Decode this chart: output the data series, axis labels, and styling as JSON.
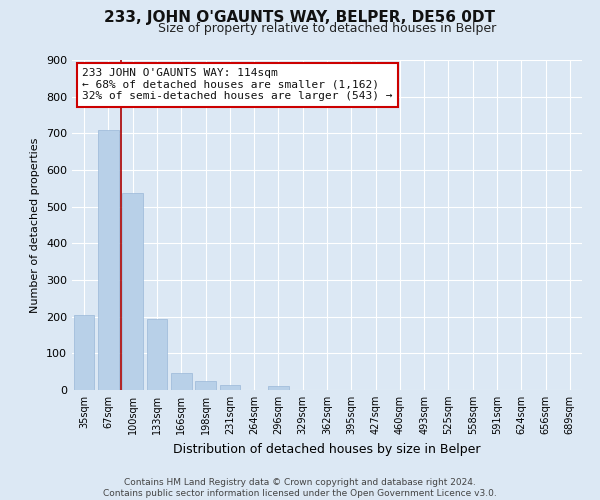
{
  "title": "233, JOHN O'GAUNTS WAY, BELPER, DE56 0DT",
  "subtitle": "Size of property relative to detached houses in Belper",
  "xlabel": "Distribution of detached houses by size in Belper",
  "ylabel": "Number of detached properties",
  "categories": [
    "35sqm",
    "67sqm",
    "100sqm",
    "133sqm",
    "166sqm",
    "198sqm",
    "231sqm",
    "264sqm",
    "296sqm",
    "329sqm",
    "362sqm",
    "395sqm",
    "427sqm",
    "460sqm",
    "493sqm",
    "525sqm",
    "558sqm",
    "591sqm",
    "624sqm",
    "656sqm",
    "689sqm"
  ],
  "values": [
    204,
    710,
    537,
    193,
    46,
    25,
    13,
    0,
    10,
    0,
    0,
    0,
    0,
    0,
    0,
    0,
    0,
    0,
    0,
    0,
    0
  ],
  "bar_color": "#b8d0e8",
  "bar_edge_color": "#9ab8d8",
  "ylim": [
    0,
    900
  ],
  "yticks": [
    0,
    100,
    200,
    300,
    400,
    500,
    600,
    700,
    800,
    900
  ],
  "red_line_x": 1.5,
  "annotation_text_line1": "233 JOHN O'GAUNTS WAY: 114sqm",
  "annotation_text_line2": "← 68% of detached houses are smaller (1,162)",
  "annotation_text_line3": "32% of semi-detached houses are larger (543) →",
  "footer_line1": "Contains HM Land Registry data © Crown copyright and database right 2024.",
  "footer_line2": "Contains public sector information licensed under the Open Government Licence v3.0.",
  "bg_color": "#dce8f4",
  "plot_bg_color": "#dce8f4",
  "grid_color": "#ffffff",
  "annotation_box_facecolor": "#ffffff",
  "annotation_box_edgecolor": "#cc0000",
  "red_line_color": "#aa0000",
  "title_fontsize": 11,
  "subtitle_fontsize": 9,
  "ylabel_fontsize": 8,
  "xlabel_fontsize": 9,
  "tick_fontsize": 7,
  "annotation_fontsize": 8,
  "footer_fontsize": 6.5
}
